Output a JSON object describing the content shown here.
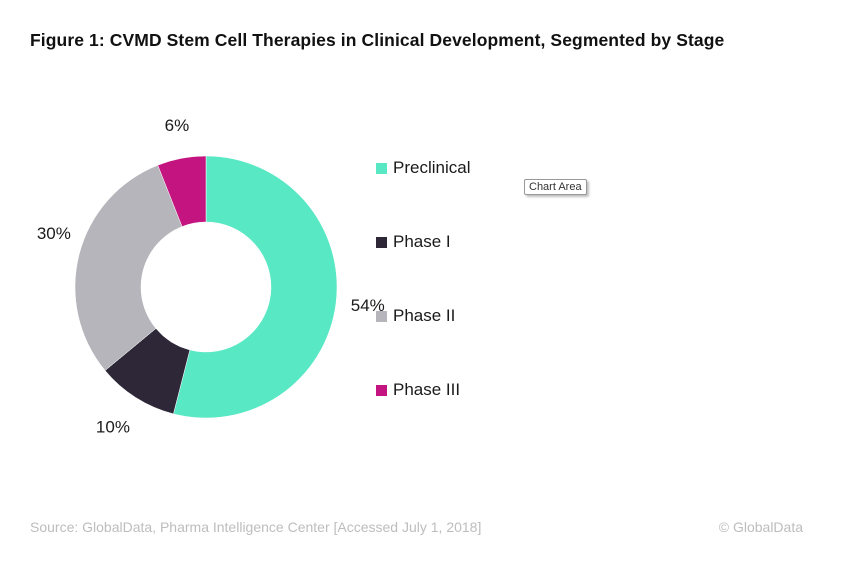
{
  "chart_data": {
    "type": "pie",
    "variant": "donut",
    "title": "Figure 1: CVMD Stem Cell Therapies in Clinical Development, Segmented by Stage",
    "categories": [
      "Preclinical",
      "Phase I",
      "Phase II",
      "Phase III"
    ],
    "values": [
      54,
      10,
      30,
      6
    ],
    "value_labels": [
      "54%",
      "10%",
      "30%",
      "6%"
    ],
    "colors": [
      "#58E8C4",
      "#2D2738",
      "#B6B5BB",
      "#C4147F"
    ],
    "start_angle_deg": 0,
    "direction": "clockwise",
    "legend_position": "right",
    "xlabel": "",
    "ylabel": ""
  },
  "tooltip": "Chart Area",
  "footer": {
    "source": "Source: GlobalData, Pharma Intelligence Center [Accessed July 1, 2018]",
    "copyright": "© GlobalData"
  }
}
